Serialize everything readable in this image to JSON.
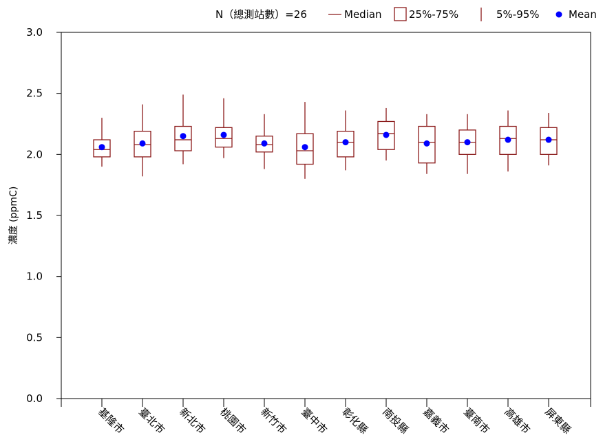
{
  "chart_data": {
    "type": "box",
    "n_label": "N（總測站數）=26",
    "legend": {
      "position": "top-right",
      "median_label": "Median",
      "box_label": "25%-75%",
      "whisker_label": "5%-95%",
      "mean_label": "Mean"
    },
    "ylabel": "濃度 (ppmC)",
    "xlabel": "",
    "ylim": [
      0.0,
      3.0
    ],
    "yticks": [
      "0.0",
      "0.5",
      "1.0",
      "1.5",
      "2.0",
      "2.5",
      "3.0"
    ],
    "grid": false,
    "colors": {
      "box": "#8b1a1a",
      "mean": "#0000ff"
    },
    "categories": [
      "基隆市",
      "臺北市",
      "新北市",
      "桃園市",
      "新竹市",
      "臺中市",
      "彰化縣",
      "南投縣",
      "嘉義市",
      "臺南市",
      "高雄市",
      "屏東縣"
    ],
    "boxes": [
      {
        "p5": 1.9,
        "q1": 1.98,
        "median": 2.04,
        "q3": 2.12,
        "p95": 2.3,
        "mean": 2.06
      },
      {
        "p5": 1.82,
        "q1": 1.98,
        "median": 2.08,
        "q3": 2.19,
        "p95": 2.41,
        "mean": 2.09
      },
      {
        "p5": 1.92,
        "q1": 2.03,
        "median": 2.12,
        "q3": 2.23,
        "p95": 2.49,
        "mean": 2.15
      },
      {
        "p5": 1.97,
        "q1": 2.06,
        "median": 2.13,
        "q3": 2.22,
        "p95": 2.46,
        "mean": 2.16
      },
      {
        "p5": 1.88,
        "q1": 2.02,
        "median": 2.08,
        "q3": 2.15,
        "p95": 2.33,
        "mean": 2.09
      },
      {
        "p5": 1.8,
        "q1": 1.92,
        "median": 2.03,
        "q3": 2.17,
        "p95": 2.43,
        "mean": 2.06
      },
      {
        "p5": 1.87,
        "q1": 1.98,
        "median": 2.1,
        "q3": 2.19,
        "p95": 2.36,
        "mean": 2.1
      },
      {
        "p5": 1.95,
        "q1": 2.04,
        "median": 2.17,
        "q3": 2.27,
        "p95": 2.38,
        "mean": 2.16
      },
      {
        "p5": 1.84,
        "q1": 1.93,
        "median": 2.1,
        "q3": 2.23,
        "p95": 2.33,
        "mean": 2.09
      },
      {
        "p5": 1.84,
        "q1": 2.0,
        "median": 2.1,
        "q3": 2.2,
        "p95": 2.33,
        "mean": 2.1
      },
      {
        "p5": 1.86,
        "q1": 2.0,
        "median": 2.13,
        "q3": 2.23,
        "p95": 2.36,
        "mean": 2.12
      },
      {
        "p5": 1.91,
        "q1": 2.0,
        "median": 2.12,
        "q3": 2.22,
        "p95": 2.34,
        "mean": 2.12
      }
    ]
  }
}
